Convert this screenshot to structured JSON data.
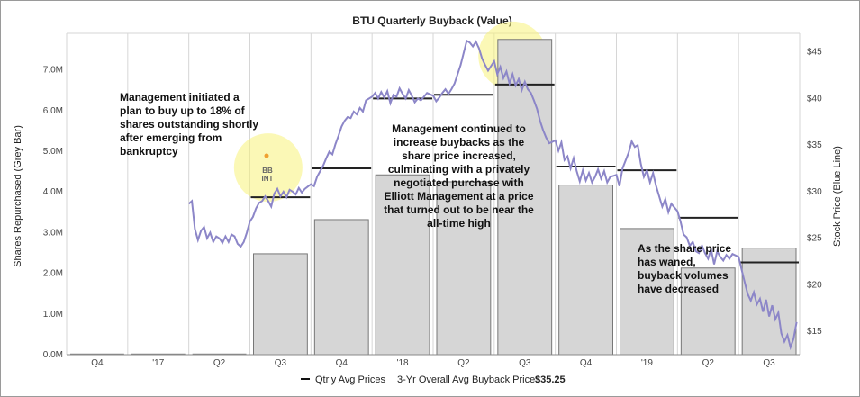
{
  "chart_data": {
    "type": "bar",
    "title": "BTU Quarterly Buyback (Value)",
    "ylabel": "Shares Repurchased (Grey Bar)",
    "y2label": "Stock Price (Blue Line)",
    "ylim": [
      0,
      7.9
    ],
    "y2lim": [
      12.5,
      47
    ],
    "yticks": [
      "0.0M",
      "1.0M",
      "2.0M",
      "3.0M",
      "4.0M",
      "5.0M",
      "6.0M",
      "7.0M"
    ],
    "y2ticks": [
      "$15",
      "$20",
      "$25",
      "$30",
      "$35",
      "$40",
      "$45"
    ],
    "categories": [
      "Q4",
      "'17",
      "Q2",
      "Q3",
      "Q4",
      "'18",
      "Q2",
      "Q3",
      "Q4",
      "'19",
      "Q2",
      "Q3"
    ],
    "bars": [
      0,
      0,
      0,
      2.48,
      3.32,
      4.42,
      4.25,
      7.75,
      4.17,
      3.1,
      2.13,
      2.62
    ],
    "avg_price_lines": [
      null,
      null,
      null,
      29.4,
      32.5,
      40.0,
      40.4,
      41.5,
      32.7,
      32.3,
      27.2,
      22.4
    ],
    "series": [
      {
        "name": "Stock Price (Blue Line)",
        "color": "#8c86c8"
      }
    ],
    "price_line": [
      [
        2.0,
        28.7
      ],
      [
        2.05,
        29.0
      ],
      [
        2.1,
        26.0
      ],
      [
        2.15,
        24.8
      ],
      [
        2.2,
        25.8
      ],
      [
        2.25,
        26.2
      ],
      [
        2.3,
        25.0
      ],
      [
        2.35,
        25.6
      ],
      [
        2.4,
        24.6
      ],
      [
        2.45,
        25.2
      ],
      [
        2.5,
        25.0
      ],
      [
        2.55,
        24.5
      ],
      [
        2.6,
        25.2
      ],
      [
        2.65,
        24.6
      ],
      [
        2.7,
        25.4
      ],
      [
        2.75,
        25.2
      ],
      [
        2.8,
        24.4
      ],
      [
        2.85,
        24.1
      ],
      [
        2.9,
        24.6
      ],
      [
        2.95,
        25.6
      ],
      [
        3.0,
        26.8
      ],
      [
        3.05,
        27.3
      ],
      [
        3.1,
        28.2
      ],
      [
        3.15,
        28.8
      ],
      [
        3.2,
        29.0
      ],
      [
        3.25,
        29.5
      ],
      [
        3.3,
        29.0
      ],
      [
        3.35,
        28.4
      ],
      [
        3.4,
        29.8
      ],
      [
        3.45,
        30.3
      ],
      [
        3.5,
        29.5
      ],
      [
        3.55,
        30.0
      ],
      [
        3.6,
        29.4
      ],
      [
        3.65,
        30.2
      ],
      [
        3.7,
        30.0
      ],
      [
        3.75,
        29.7
      ],
      [
        3.8,
        30.4
      ],
      [
        3.85,
        29.9
      ],
      [
        3.9,
        30.3
      ],
      [
        4.0,
        30.8
      ],
      [
        4.05,
        30.6
      ],
      [
        4.1,
        31.6
      ],
      [
        4.15,
        32.2
      ],
      [
        4.2,
        32.8
      ],
      [
        4.25,
        33.6
      ],
      [
        4.3,
        34.3
      ],
      [
        4.35,
        34.0
      ],
      [
        4.4,
        35.1
      ],
      [
        4.45,
        36.0
      ],
      [
        4.5,
        37.0
      ],
      [
        4.55,
        37.6
      ],
      [
        4.6,
        38.0
      ],
      [
        4.65,
        37.9
      ],
      [
        4.7,
        38.6
      ],
      [
        4.75,
        38.3
      ],
      [
        4.8,
        39.0
      ],
      [
        4.85,
        38.6
      ],
      [
        4.9,
        39.8
      ],
      [
        5.0,
        40.2
      ],
      [
        5.05,
        40.6
      ],
      [
        5.1,
        40.0
      ],
      [
        5.15,
        40.7
      ],
      [
        5.2,
        40.1
      ],
      [
        5.25,
        40.8
      ],
      [
        5.3,
        39.5
      ],
      [
        5.35,
        40.4
      ],
      [
        5.4,
        40.2
      ],
      [
        5.45,
        41.1
      ],
      [
        5.5,
        40.5
      ],
      [
        5.55,
        40.0
      ],
      [
        5.6,
        40.9
      ],
      [
        5.65,
        40.3
      ],
      [
        5.7,
        39.6
      ],
      [
        5.75,
        40.0
      ],
      [
        5.8,
        39.8
      ],
      [
        5.85,
        40.2
      ],
      [
        5.9,
        40.6
      ],
      [
        6.0,
        40.3
      ],
      [
        6.05,
        39.7
      ],
      [
        6.1,
        40.1
      ],
      [
        6.15,
        40.6
      ],
      [
        6.2,
        41.0
      ],
      [
        6.25,
        40.5
      ],
      [
        6.3,
        41.0
      ],
      [
        6.35,
        41.6
      ],
      [
        6.4,
        42.6
      ],
      [
        6.45,
        43.6
      ],
      [
        6.5,
        44.9
      ],
      [
        6.55,
        46.2
      ],
      [
        6.6,
        46.0
      ],
      [
        6.65,
        45.6
      ],
      [
        6.7,
        46.1
      ],
      [
        6.75,
        45.4
      ],
      [
        6.8,
        44.3
      ],
      [
        6.85,
        43.6
      ],
      [
        6.9,
        43.0
      ],
      [
        7.0,
        44.0
      ],
      [
        7.05,
        42.6
      ],
      [
        7.1,
        43.4
      ],
      [
        7.15,
        42.2
      ],
      [
        7.2,
        42.9
      ],
      [
        7.25,
        41.6
      ],
      [
        7.3,
        42.6
      ],
      [
        7.35,
        41.4
      ],
      [
        7.4,
        42.1
      ],
      [
        7.45,
        40.9
      ],
      [
        7.5,
        41.8
      ],
      [
        7.55,
        41.0
      ],
      [
        7.6,
        40.6
      ],
      [
        7.65,
        39.8
      ],
      [
        7.7,
        38.9
      ],
      [
        7.75,
        37.6
      ],
      [
        7.8,
        36.6
      ],
      [
        7.85,
        35.8
      ],
      [
        7.9,
        35.2
      ],
      [
        8.0,
        35.5
      ],
      [
        8.05,
        34.4
      ],
      [
        8.1,
        35.3
      ],
      [
        8.15,
        33.4
      ],
      [
        8.2,
        33.8
      ],
      [
        8.25,
        32.5
      ],
      [
        8.3,
        33.6
      ],
      [
        8.35,
        32.2
      ],
      [
        8.4,
        31.1
      ],
      [
        8.45,
        32.3
      ],
      [
        8.5,
        31.2
      ],
      [
        8.55,
        32.0
      ],
      [
        8.6,
        31.0
      ],
      [
        8.65,
        31.6
      ],
      [
        8.7,
        32.4
      ],
      [
        8.75,
        31.4
      ],
      [
        8.8,
        32.2
      ],
      [
        8.85,
        31.0
      ],
      [
        8.9,
        31.6
      ],
      [
        9.0,
        31.8
      ],
      [
        9.05,
        30.6
      ],
      [
        9.1,
        32.5
      ],
      [
        9.2,
        34.2
      ],
      [
        9.25,
        35.4
      ],
      [
        9.3,
        34.8
      ],
      [
        9.35,
        35.0
      ],
      [
        9.4,
        33.0
      ],
      [
        9.45,
        31.6
      ],
      [
        9.5,
        32.3
      ],
      [
        9.55,
        31.0
      ],
      [
        9.6,
        32.0
      ],
      [
        9.65,
        30.6
      ],
      [
        9.7,
        29.5
      ],
      [
        9.75,
        28.4
      ],
      [
        9.8,
        29.2
      ],
      [
        9.85,
        27.8
      ],
      [
        9.9,
        28.7
      ],
      [
        10.0,
        27.9
      ],
      [
        10.05,
        26.8
      ],
      [
        10.1,
        25.4
      ],
      [
        10.15,
        25.1
      ],
      [
        10.2,
        24.2
      ],
      [
        10.25,
        24.6
      ],
      [
        10.3,
        23.6
      ],
      [
        10.35,
        23.4
      ],
      [
        10.4,
        24.2
      ],
      [
        10.45,
        23.4
      ],
      [
        10.5,
        22.8
      ],
      [
        10.55,
        23.8
      ],
      [
        10.6,
        22.2
      ],
      [
        10.65,
        23.6
      ],
      [
        10.7,
        23.0
      ],
      [
        10.75,
        22.6
      ],
      [
        10.8,
        23.2
      ],
      [
        10.85,
        22.8
      ],
      [
        10.9,
        23.3
      ],
      [
        11.0,
        23.0
      ],
      [
        11.05,
        21.6
      ],
      [
        11.1,
        20.3
      ],
      [
        11.15,
        19.0
      ],
      [
        11.2,
        18.3
      ],
      [
        11.25,
        19.2
      ],
      [
        11.3,
        17.9
      ],
      [
        11.35,
        18.5
      ],
      [
        11.4,
        17.1
      ],
      [
        11.45,
        18.4
      ],
      [
        11.5,
        16.6
      ],
      [
        11.55,
        17.8
      ],
      [
        11.6,
        16.3
      ],
      [
        11.65,
        17.0
      ],
      [
        11.7,
        14.8
      ],
      [
        11.75,
        13.9
      ],
      [
        11.8,
        14.6
      ],
      [
        11.85,
        13.3
      ],
      [
        11.9,
        14.2
      ],
      [
        11.95,
        16.0
      ]
    ],
    "highlights": [
      {
        "x": 3.3,
        "y": 4.6
      },
      {
        "x": 7.3,
        "y": 7.35
      }
    ],
    "annotations": [
      "Management initiated a plan to buy up to 18% of shares outstanding shortly after emerging from bankruptcy",
      "Management continued to increase buybacks as the share price increased, culminating with a privately negotiated purchase with Elliott Management at a price that turned out to be near the all-time high",
      "As the share price has waned, buyback volumes have decreased"
    ],
    "marker_labels": [
      "BB",
      "INT"
    ],
    "legend": {
      "label": "Qtrly Avg Prices",
      "summary": "3-Yr Overall Avg Buyback Price:",
      "summary_value": "$35.25"
    },
    "grid": true
  }
}
